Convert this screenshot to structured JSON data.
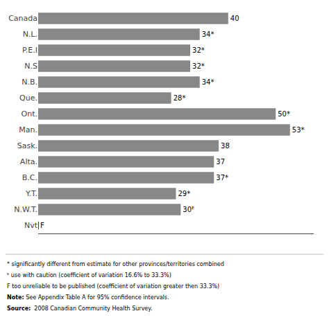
{
  "chart_data": {
    "type": "bar",
    "orientation": "horizontal",
    "categories": [
      "Canada",
      "N.L.",
      "P.E.I",
      "N.S",
      "N.B.",
      "Que.",
      "Ont.",
      "Man.",
      "Sask.",
      "Alta.",
      "B.C.",
      "Y.T.",
      "N.W.T.",
      "Nvt"
    ],
    "values": [
      40,
      34,
      32,
      32,
      34,
      28,
      50,
      53,
      38,
      37,
      37,
      29,
      30,
      0
    ],
    "value_labels": [
      "40",
      "34*",
      "32*",
      "32*",
      "34*",
      "28*",
      "50*",
      "53*",
      "38",
      "37",
      "37*",
      "29*",
      "30ᴱ",
      "F"
    ],
    "data_labels": true,
    "color": "#888888",
    "xlim": [
      0,
      58
    ],
    "tick_labels": "y",
    "grid": false,
    "annotations": [
      "* significantly different from estimate for other provinces/territories combined",
      "ᴱ use with caution (coefficient of variation 16.6% to 33.3%)",
      "F too unreliable to be published (coefficient of variation greater then 33.3%)",
      "Note: See Appendix Table A for 95% confidence intervals.",
      "Source:  2008 Canadian Community Health Survey."
    ]
  }
}
